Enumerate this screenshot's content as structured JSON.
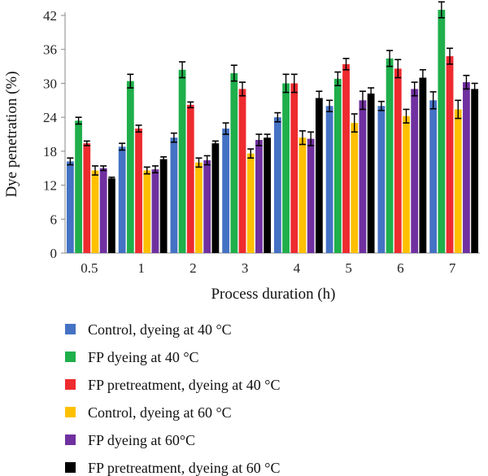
{
  "chart_data": {
    "type": "bar",
    "xlabel": "Process duration (h)",
    "ylabel": "Dye penetration (%)",
    "ylim": [
      0,
      42
    ],
    "yticks": [
      0,
      6,
      12,
      18,
      24,
      30,
      36,
      42
    ],
    "categories": [
      "0.5",
      "1",
      "2",
      "3",
      "4",
      "5",
      "6",
      "7"
    ],
    "grid": false,
    "legend_position": "bottom",
    "series": [
      {
        "name": "Control, dyeing at 40 °C",
        "color": "#4472C4",
        "values": [
          16.2,
          18.8,
          20.4,
          22.0,
          24.0,
          26.0,
          26.0,
          27.0
        ],
        "errors": [
          0.6,
          0.6,
          0.8,
          1.0,
          0.8,
          1.0,
          0.8,
          1.5
        ]
      },
      {
        "name": "FP dyeing at 40 °C",
        "color": "#1FAF4B",
        "values": [
          23.4,
          30.4,
          32.4,
          31.8,
          30.0,
          30.8,
          34.4,
          43.0
        ],
        "errors": [
          0.6,
          1.2,
          1.4,
          1.4,
          1.6,
          1.2,
          1.4,
          1.4
        ]
      },
      {
        "name": "FP pretreatment, dyeing at 40 °C",
        "color": "#EE2B2F",
        "values": [
          19.4,
          22.0,
          26.2,
          29.0,
          30.0,
          33.4,
          32.6,
          34.8
        ],
        "errors": [
          0.4,
          0.6,
          0.5,
          1.2,
          1.6,
          1.0,
          1.6,
          1.4
        ]
      },
      {
        "name": "Control, dyeing at 60 °C",
        "color": "#FFC000",
        "values": [
          14.6,
          14.6,
          16.0,
          17.6,
          20.4,
          23.0,
          24.2,
          25.4
        ],
        "errors": [
          0.8,
          0.6,
          0.8,
          0.8,
          1.2,
          1.6,
          1.2,
          1.6
        ]
      },
      {
        "name": "FP dyeing at 60°C",
        "color": "#7030A0",
        "values": [
          15.0,
          14.8,
          16.4,
          20.0,
          20.2,
          27.0,
          29.0,
          30.2
        ],
        "errors": [
          0.4,
          0.6,
          0.8,
          1.0,
          1.2,
          1.6,
          1.2,
          1.2
        ]
      },
      {
        "name": "FP pretreatment, dyeing at 60 °C",
        "color": "#000000",
        "values": [
          13.2,
          16.6,
          19.4,
          20.4,
          27.4,
          28.2,
          31.0,
          29.0
        ],
        "errors": [
          0.2,
          0.4,
          0.4,
          0.6,
          1.2,
          1.0,
          1.4,
          1.0
        ]
      }
    ]
  }
}
